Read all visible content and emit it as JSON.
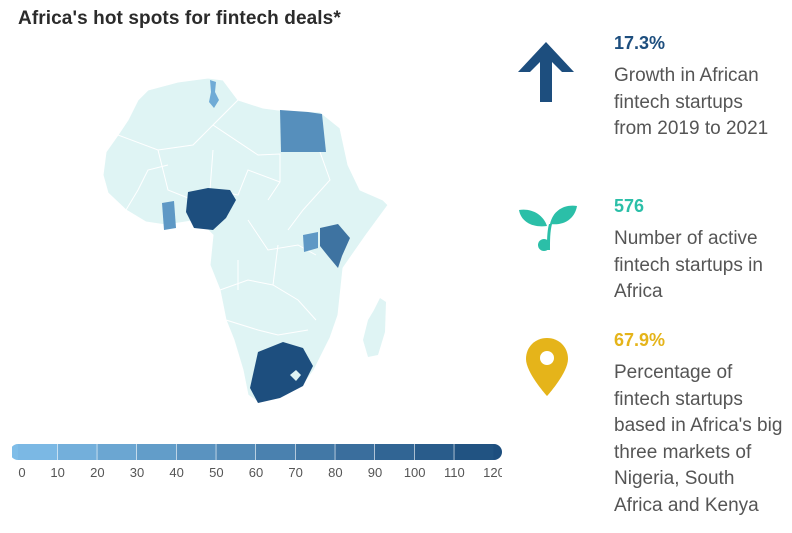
{
  "title": "Africa's hot spots for fintech deals*",
  "chart_data": {
    "type": "choropleth-map",
    "regions": [
      {
        "name": "Nigeria",
        "value": 120
      },
      {
        "name": "South Africa",
        "value": 120
      },
      {
        "name": "Kenya",
        "value": 80
      },
      {
        "name": "Egypt",
        "value": 50
      },
      {
        "name": "Ghana",
        "value": 40
      },
      {
        "name": "Uganda",
        "value": 40
      },
      {
        "name": "Tunisia",
        "value": 20
      }
    ],
    "scale": {
      "ticks": [
        "0",
        "10",
        "20",
        "30",
        "40",
        "50",
        "60",
        "70",
        "80",
        "90",
        "100",
        "110",
        "120"
      ],
      "min": 0,
      "max": 120,
      "color_low": "#7fbde8",
      "color_high": "#1d4e7e"
    },
    "base_color": "#dff4f4"
  },
  "stats": [
    {
      "value": "17.3%",
      "description": "Growth in African fintech startups from 2019 to 2021",
      "icon": "up-arrow-icon",
      "color": "#1d4e7e"
    },
    {
      "value": "576",
      "description": "Number of active fintech startups in Africa",
      "icon": "sprout-icon",
      "color": "#2bbfa8"
    },
    {
      "value": "67.9%",
      "description": "Percentage of fintech startups based in Africa's big three markets of Nigeria, South Africa and Kenya",
      "icon": "location-pin-icon",
      "color": "#e5b41a"
    }
  ]
}
